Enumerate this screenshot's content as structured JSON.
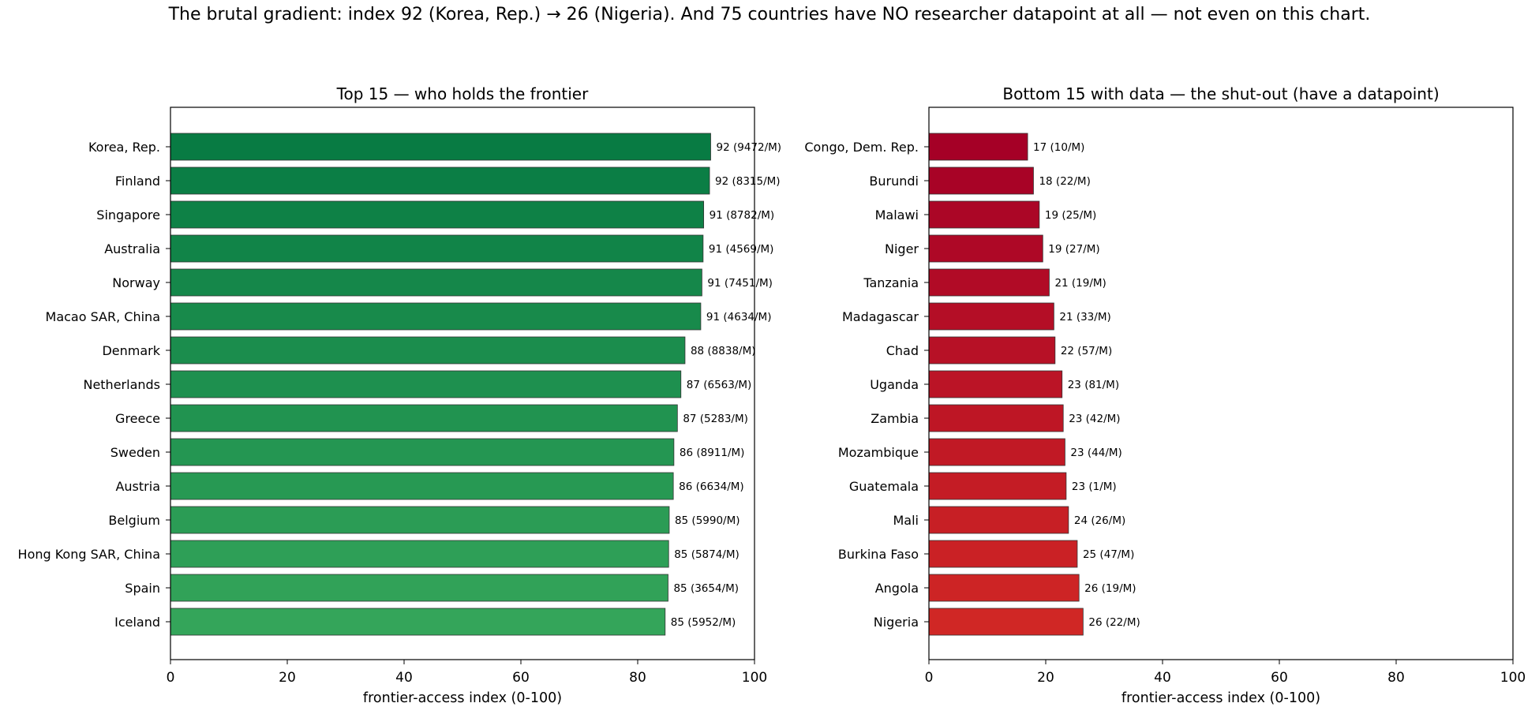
{
  "suptitle": "The brutal gradient: index 92 (Korea, Rep.) → 26 (Nigeria). And 75 countries have NO researcher datapoint at all — not even on this chart.",
  "chart_data": [
    {
      "type": "bar",
      "orientation": "horizontal",
      "title": "Top 15 — who holds the frontier",
      "xlabel": "frontier-access index (0-100)",
      "ylabel": "",
      "xlim": [
        0,
        100
      ],
      "xticks": [
        0,
        20,
        40,
        60,
        80,
        100
      ],
      "grid": false,
      "color_start": "#087b43",
      "color_end": "#34a55a",
      "categories": [
        "Korea, Rep.",
        "Finland",
        "Singapore",
        "Australia",
        "Norway",
        "Macao SAR, China",
        "Denmark",
        "Netherlands",
        "Greece",
        "Sweden",
        "Austria",
        "Belgium",
        "Hong Kong SAR, China",
        "Spain",
        "Iceland"
      ],
      "values": [
        92.5,
        92.3,
        91.3,
        91.2,
        91.0,
        90.8,
        88.1,
        87.4,
        86.8,
        86.2,
        86.1,
        85.4,
        85.3,
        85.2,
        84.7
      ],
      "labels": [
        "92  (9472/M)",
        "92  (8315/M)",
        "91  (8782/M)",
        "91  (4569/M)",
        "91  (7451/M)",
        "91  (4634/M)",
        "88  (8838/M)",
        "87  (6563/M)",
        "87  (5283/M)",
        "86  (8911/M)",
        "86  (6634/M)",
        "85  (5990/M)",
        "85  (5874/M)",
        "85  (3654/M)",
        "85  (5952/M)"
      ]
    },
    {
      "type": "bar",
      "orientation": "horizontal",
      "title": "Bottom 15 with data — the shut-out (have a datapoint)",
      "xlabel": "frontier-access index (0-100)",
      "ylabel": "",
      "xlim": [
        0,
        100
      ],
      "xticks": [
        0,
        20,
        40,
        60,
        80,
        100
      ],
      "grid": false,
      "color_start": "#a50026",
      "color_end": "#d02725",
      "categories": [
        "Congo, Dem. Rep.",
        "Burundi",
        "Malawi",
        "Niger",
        "Tanzania",
        "Madagascar",
        "Chad",
        "Uganda",
        "Zambia",
        "Mozambique",
        "Guatemala",
        "Mali",
        "Burkina Faso",
        "Angola",
        "Nigeria"
      ],
      "values": [
        16.9,
        17.9,
        18.9,
        19.5,
        20.6,
        21.4,
        21.6,
        22.8,
        23.0,
        23.3,
        23.5,
        23.9,
        25.4,
        25.7,
        26.4
      ],
      "labels": [
        "17  (10/M)",
        "18  (22/M)",
        "19  (25/M)",
        "19  (27/M)",
        "21  (19/M)",
        "21  (33/M)",
        "22  (57/M)",
        "23  (81/M)",
        "23  (42/M)",
        "23  (44/M)",
        "23  (1/M)",
        "24  (26/M)",
        "25  (47/M)",
        "26  (19/M)",
        "26  (22/M)"
      ]
    }
  ]
}
